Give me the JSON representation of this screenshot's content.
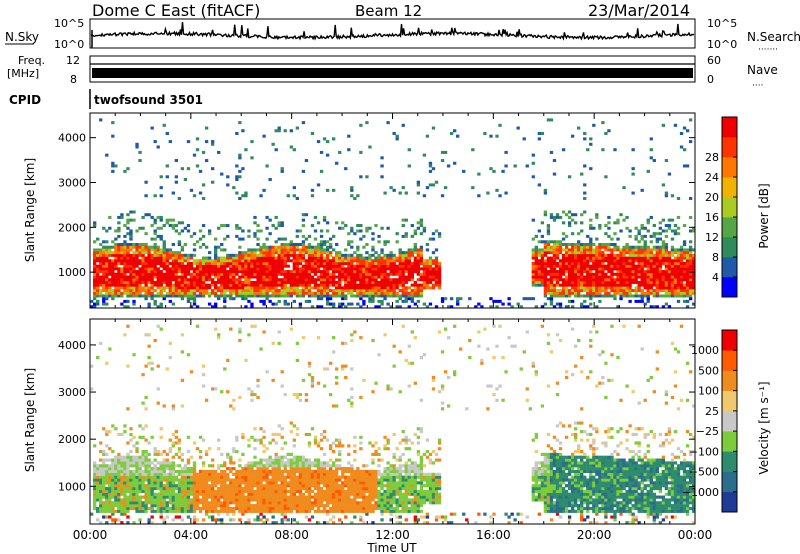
{
  "header": {
    "title": "Dome C East (fitACF)",
    "beam": "Beam 12",
    "date": "23/Mar/2014"
  },
  "noise_panel": {
    "left_label": "N.Sky",
    "right_label": "N.Search",
    "right_sublabel": "·······",
    "tick_top": "10^5",
    "tick_bottom": "10^0"
  },
  "freq_panel": {
    "left_label_1": "Freq.",
    "left_label_2": "[MHz]",
    "left_tick_top": "12",
    "left_tick_bottom": "8",
    "right_label": "Nave",
    "right_sublabel": "····",
    "right_tick_top": "60",
    "right_tick_bottom": "0"
  },
  "cpid": {
    "label": "CPID",
    "value": "twofsound 3501"
  },
  "chart_data": [
    {
      "type": "heatmap",
      "name": "power",
      "ylabel": "Slant Range [km]",
      "yticks": [
        "1000",
        "2000",
        "3000",
        "4000"
      ],
      "ylim": [
        200,
        4550
      ],
      "colorbar": {
        "label": "Power [dB]",
        "ticks": [
          "4",
          "8",
          "12",
          "16",
          "20",
          "24",
          "28"
        ],
        "colors": [
          "#0000ff",
          "#1f5aa8",
          "#2f8a5c",
          "#56a648",
          "#aacc22",
          "#f0b400",
          "#ff7700",
          "#ff3300",
          "#ee0000"
        ]
      }
    },
    {
      "type": "heatmap",
      "name": "velocity",
      "ylabel": "Slant Range [km]",
      "yticks": [
        "1000",
        "2000",
        "3000",
        "4000"
      ],
      "ylim": [
        200,
        4550
      ],
      "xlabel": "Time UT",
      "xticks": [
        "00:00",
        "04:00",
        "08:00",
        "12:00",
        "16:00",
        "20:00",
        "00:00"
      ],
      "colorbar": {
        "label": "Velocity [m s⁻¹]",
        "ticks": [
          "1000",
          "500",
          "100",
          "25",
          "−25",
          "−100",
          "−500",
          "−1000"
        ],
        "colors": [
          "#1e3c96",
          "#2a6e8c",
          "#2e8c6e",
          "#7ccc3c",
          "#c8c8c8",
          "#f0c86e",
          "#f08c1e",
          "#ff5a00",
          "#ee0000"
        ]
      }
    }
  ]
}
